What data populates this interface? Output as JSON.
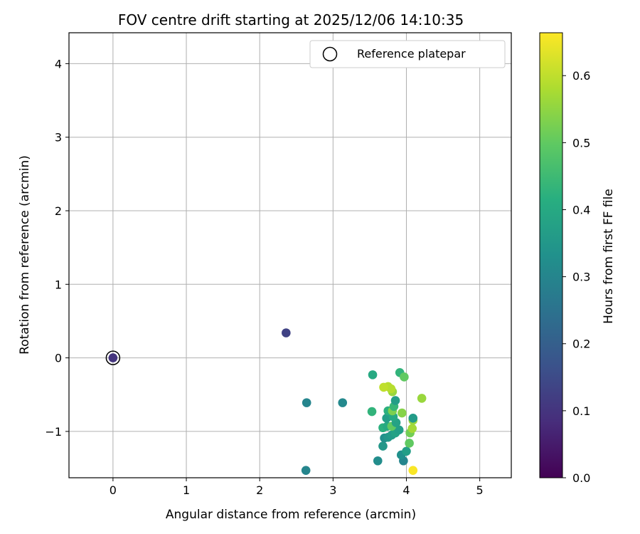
{
  "chart_data": {
    "type": "scatter",
    "title": "FOV centre drift starting at 2025/12/06 14:10:35",
    "xlabel": "Angular distance from reference (arcmin)",
    "ylabel": "Rotation from reference (arcmin)",
    "xlim": [
      -0.6,
      5.43
    ],
    "ylim": [
      -1.63,
      4.42
    ],
    "xticks": [
      0,
      1,
      2,
      3,
      4,
      5
    ],
    "yticks": [
      -1,
      0,
      1,
      2,
      3,
      4
    ],
    "grid": true,
    "legend": {
      "placement": "top-right",
      "entries": [
        "Reference platepar"
      ]
    },
    "colorbar": {
      "label": "Hours from first FF file",
      "range": [
        0.0,
        0.664
      ],
      "ticks": [
        0.0,
        0.1,
        0.2,
        0.3,
        0.4,
        0.5,
        0.6
      ],
      "tick_labels": [
        "0.0",
        "0.1",
        "0.2",
        "0.3",
        "0.4",
        "0.5",
        "0.6"
      ],
      "colormap": "viridis"
    },
    "reference_point": {
      "x": 0.0,
      "y": 0.0,
      "t": 0.1
    },
    "points": [
      {
        "x": 0.0,
        "y": 0.0,
        "t": 0.1
      },
      {
        "x": 2.36,
        "y": 0.34,
        "t": 0.13
      },
      {
        "x": 2.64,
        "y": -0.61,
        "t": 0.3
      },
      {
        "x": 3.13,
        "y": -0.61,
        "t": 0.31
      },
      {
        "x": 2.63,
        "y": -1.53,
        "t": 0.3
      },
      {
        "x": 3.61,
        "y": -1.4,
        "t": 0.32
      },
      {
        "x": 3.96,
        "y": -1.4,
        "t": 0.3
      },
      {
        "x": 3.93,
        "y": -1.32,
        "t": 0.33
      },
      {
        "x": 4.0,
        "y": -1.27,
        "t": 0.37
      },
      {
        "x": 3.68,
        "y": -1.2,
        "t": 0.35
      },
      {
        "x": 4.04,
        "y": -1.16,
        "t": 0.5
      },
      {
        "x": 3.7,
        "y": -1.09,
        "t": 0.33
      },
      {
        "x": 3.75,
        "y": -1.08,
        "t": 0.35
      },
      {
        "x": 3.8,
        "y": -1.05,
        "t": 0.36
      },
      {
        "x": 4.05,
        "y": -1.02,
        "t": 0.52
      },
      {
        "x": 3.85,
        "y": -1.02,
        "t": 0.38
      },
      {
        "x": 3.9,
        "y": -0.98,
        "t": 0.37
      },
      {
        "x": 4.08,
        "y": -0.96,
        "t": 0.57
      },
      {
        "x": 3.68,
        "y": -0.95,
        "t": 0.42
      },
      {
        "x": 3.74,
        "y": -0.93,
        "t": 0.4
      },
      {
        "x": 3.8,
        "y": -0.93,
        "t": 0.5
      },
      {
        "x": 3.86,
        "y": -0.88,
        "t": 0.38
      },
      {
        "x": 4.09,
        "y": -0.85,
        "t": 0.56
      },
      {
        "x": 4.09,
        "y": -0.82,
        "t": 0.36
      },
      {
        "x": 3.73,
        "y": -0.82,
        "t": 0.37
      },
      {
        "x": 3.82,
        "y": -0.8,
        "t": 0.4
      },
      {
        "x": 3.94,
        "y": -0.75,
        "t": 0.54
      },
      {
        "x": 3.53,
        "y": -0.73,
        "t": 0.43
      },
      {
        "x": 3.75,
        "y": -0.72,
        "t": 0.42
      },
      {
        "x": 3.81,
        "y": -0.72,
        "t": 0.53
      },
      {
        "x": 3.83,
        "y": -0.66,
        "t": 0.44
      },
      {
        "x": 3.85,
        "y": -0.58,
        "t": 0.37
      },
      {
        "x": 4.21,
        "y": -0.55,
        "t": 0.56
      },
      {
        "x": 3.81,
        "y": -0.46,
        "t": 0.56
      },
      {
        "x": 3.79,
        "y": -0.42,
        "t": 0.59
      },
      {
        "x": 3.75,
        "y": -0.39,
        "t": 0.59
      },
      {
        "x": 3.69,
        "y": -0.4,
        "t": 0.6
      },
      {
        "x": 3.54,
        "y": -0.23,
        "t": 0.4
      },
      {
        "x": 3.91,
        "y": -0.2,
        "t": 0.43
      },
      {
        "x": 3.97,
        "y": -0.26,
        "t": 0.5
      },
      {
        "x": 4.09,
        "y": -1.53,
        "t": 0.66
      }
    ]
  }
}
